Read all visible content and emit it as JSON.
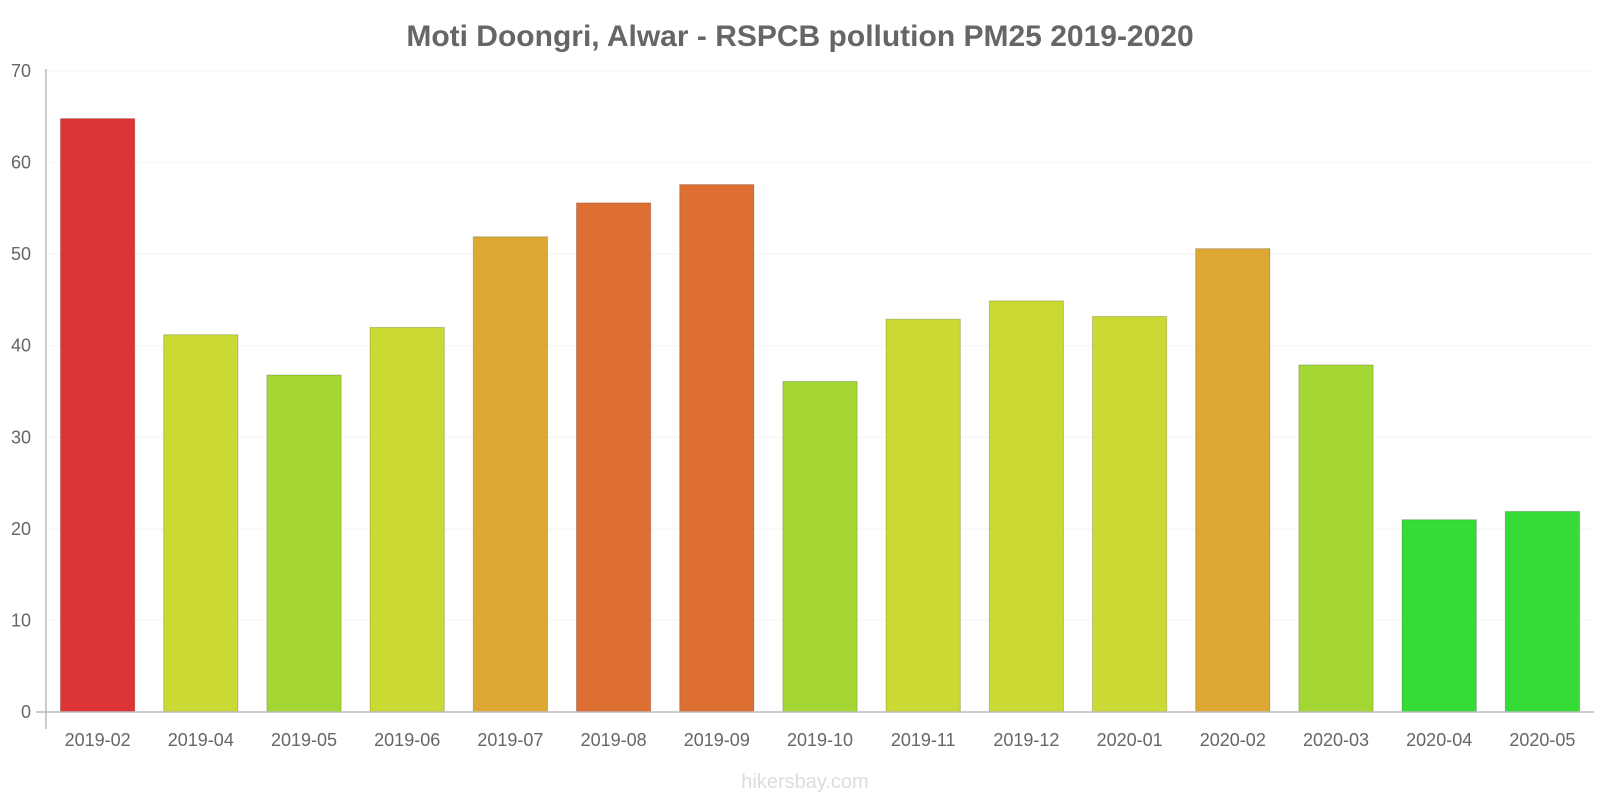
{
  "chart_data": {
    "type": "bar",
    "title": "Moti Doongri, Alwar - RSPCB pollution PM25 2019-2020",
    "xlabel": "",
    "ylabel": "",
    "ylim": [
      0,
      70
    ],
    "yticks": [
      "0",
      "10",
      "20",
      "30",
      "40",
      "50",
      "60",
      "70"
    ],
    "categories": [
      "2019-02",
      "2019-04",
      "2019-05",
      "2019-06",
      "2019-07",
      "2019-08",
      "2019-09",
      "2019-10",
      "2019-11",
      "2019-12",
      "2020-01",
      "2020-02",
      "2020-03",
      "2020-04",
      "2020-05"
    ],
    "values": [
      64.8,
      41.2,
      36.8,
      42.0,
      51.9,
      55.6,
      57.6,
      36.1,
      42.9,
      44.9,
      43.2,
      50.6,
      37.9,
      21.0,
      21.9
    ],
    "colors": [
      "#dd3535",
      "#cad933",
      "#a4d733",
      "#cad933",
      "#dca832",
      "#dd6f33",
      "#dd6f33",
      "#a4d733",
      "#cad933",
      "#cad933",
      "#cad933",
      "#dca832",
      "#a4d733",
      "#35dc35",
      "#35dc35"
    ],
    "grid": true,
    "legend": "none"
  },
  "watermark": "hikersbay.com"
}
